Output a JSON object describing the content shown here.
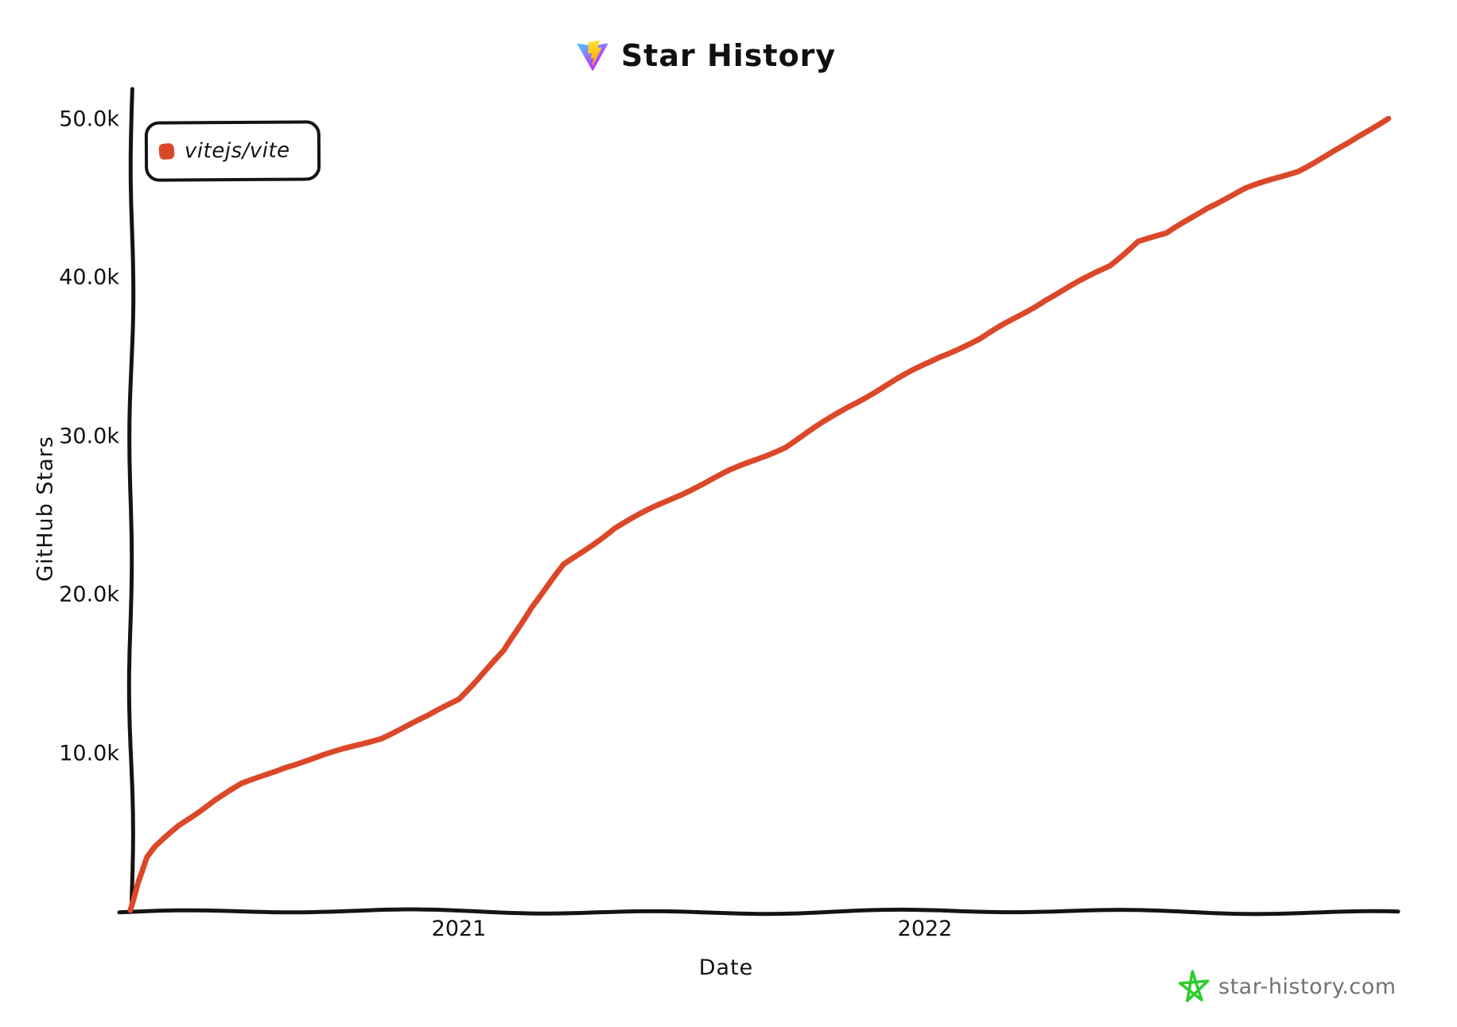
{
  "title": {
    "text": "Star History"
  },
  "legend": {
    "items": [
      {
        "label": "vitejs/vite",
        "marker_color": "#DB4829"
      }
    ]
  },
  "axes": {
    "y_label": "GitHub Stars",
    "x_label": "Date",
    "y_ticks": [
      "50.0k",
      "40.0k",
      "30.0k",
      "20.0k",
      "10.0k"
    ],
    "x_ticks": [
      "2021",
      "2022"
    ]
  },
  "watermark": {
    "text": "star-history.com"
  },
  "colors": {
    "line": "#DB4829",
    "axis": "#141414",
    "watermark_star_green": "#2FCC2F",
    "watermark_text_gray": "#71717A",
    "logo_gradient_blue": "#41D1FF",
    "logo_gradient_purple": "#BD34FE",
    "logo_bolt_yellow_light": "#FFEA83",
    "logo_bolt_yellow_dark": "#FFA800"
  },
  "chart_data": {
    "type": "line",
    "title": "Star History",
    "xlabel": "Date",
    "ylabel": "GitHub Stars",
    "grid": false,
    "legend_position": "top-left-inside",
    "x_axis": {
      "type": "date",
      "range": [
        "2020-04-18",
        "2022-12-30"
      ],
      "tick_labels": [
        "2021",
        "2022"
      ]
    },
    "y_axis": {
      "range": [
        0,
        51500
      ],
      "tick_interval": 10000,
      "tick_labels": [
        "10.0k",
        "20.0k",
        "30.0k",
        "40.0k",
        "50.0k"
      ]
    },
    "series": [
      {
        "name": "vitejs/vite",
        "color": "#DB4829",
        "points": [
          {
            "date": "2020-04-18",
            "stars": 100
          },
          {
            "date": "2020-04-24",
            "stars": 1900
          },
          {
            "date": "2020-05-01",
            "stars": 3400
          },
          {
            "date": "2020-05-07",
            "stars": 4000
          },
          {
            "date": "2020-05-26",
            "stars": 5400
          },
          {
            "date": "2020-06-23",
            "stars": 7000
          },
          {
            "date": "2020-07-14",
            "stars": 8000
          },
          {
            "date": "2020-08-18",
            "stars": 9200
          },
          {
            "date": "2020-09-25",
            "stars": 10100
          },
          {
            "date": "2020-11-01",
            "stars": 11000
          },
          {
            "date": "2020-12-08",
            "stars": 12300
          },
          {
            "date": "2021-01-01",
            "stars": 13400
          },
          {
            "date": "2021-02-05",
            "stars": 16400
          },
          {
            "date": "2021-02-27",
            "stars": 19300
          },
          {
            "date": "2021-03-24",
            "stars": 21900
          },
          {
            "date": "2021-05-03",
            "stars": 24200
          },
          {
            "date": "2021-06-11",
            "stars": 25800
          },
          {
            "date": "2021-08-01",
            "stars": 27800
          },
          {
            "date": "2021-09-14",
            "stars": 29400
          },
          {
            "date": "2021-11-02",
            "stars": 31900
          },
          {
            "date": "2022-01-13",
            "stars": 35000
          },
          {
            "date": "2022-02-13",
            "stars": 36100
          },
          {
            "date": "2022-04-06",
            "stars": 38700
          },
          {
            "date": "2022-05-26",
            "stars": 40800
          },
          {
            "date": "2022-06-17",
            "stars": 42300
          },
          {
            "date": "2022-07-09",
            "stars": 42700
          },
          {
            "date": "2022-08-10",
            "stars": 44400
          },
          {
            "date": "2022-09-09",
            "stars": 45600
          },
          {
            "date": "2022-10-20",
            "stars": 46800
          },
          {
            "date": "2022-11-29",
            "stars": 48500
          },
          {
            "date": "2022-12-30",
            "stars": 50100
          }
        ]
      }
    ]
  }
}
